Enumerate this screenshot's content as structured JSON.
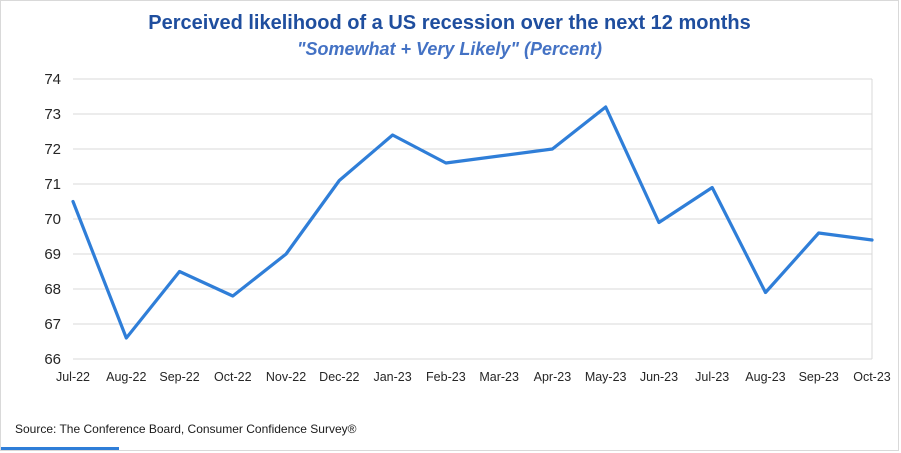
{
  "header": {
    "title": "Perceived likelihood of a US recession over the next 12 months",
    "subtitle": "\"Somewhat + Very Likely\" (Percent)"
  },
  "footer": {
    "source": "Source: The Conference Board, Consumer Confidence   Survey®"
  },
  "colors": {
    "line": "#2f7ed8",
    "grid": "#d9d9d9",
    "tick_text": "#262626",
    "title": "#1f4e9e",
    "subtitle": "#4472c4"
  },
  "chart_data": {
    "type": "line",
    "title": "Perceived likelihood of a US recession over the next 12 months",
    "subtitle": "\"Somewhat + Very Likely\" (Percent)",
    "categories": [
      "Jul-22",
      "Aug-22",
      "Sep-22",
      "Oct-22",
      "Nov-22",
      "Dec-22",
      "Jan-23",
      "Feb-23",
      "Mar-23",
      "Apr-23",
      "May-23",
      "Jun-23",
      "Jul-23",
      "Aug-23",
      "Sep-23",
      "Oct-23"
    ],
    "values": [
      70.5,
      66.6,
      68.5,
      67.8,
      69.0,
      71.1,
      72.4,
      71.6,
      71.8,
      72.0,
      73.2,
      69.9,
      70.9,
      67.9,
      69.6,
      69.4
    ],
    "xlabel": "",
    "ylabel": "",
    "ylim": [
      66,
      74
    ],
    "ytick_step": 1,
    "grid": "horizontal",
    "legend": "none"
  }
}
